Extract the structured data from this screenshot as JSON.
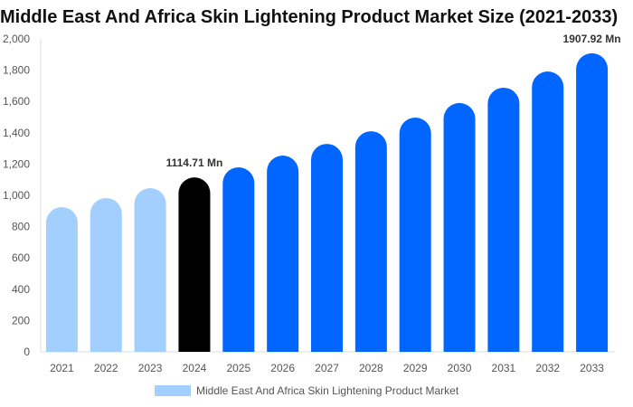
{
  "chart_data": {
    "type": "bar",
    "title": "Middle East And Africa Skin Lightening Product Market Size (2021-2033)",
    "categories": [
      "2021",
      "2022",
      "2023",
      "2024",
      "2025",
      "2026",
      "2027",
      "2028",
      "2029",
      "2030",
      "2031",
      "2032",
      "2033"
    ],
    "series": [
      {
        "name": "Middle East And Africa Skin Lightening Product Market",
        "values": [
          925,
          983,
          1046,
          1114.71,
          1179,
          1254,
          1329,
          1410,
          1497,
          1590,
          1688,
          1792,
          1907.92
        ]
      }
    ],
    "bar_colors": [
      "#a3cfff",
      "#a3cfff",
      "#a3cfff",
      "#000000",
      "#0066ff",
      "#0066ff",
      "#0066ff",
      "#0066ff",
      "#0066ff",
      "#0066ff",
      "#0066ff",
      "#0066ff",
      "#0066ff"
    ],
    "data_labels": [
      {
        "index": 3,
        "text": "1114.71 Mn"
      },
      {
        "index": 12,
        "text": "1907.92 Mn"
      }
    ],
    "ylim": [
      0,
      2000
    ],
    "yticks": [
      "0",
      "200",
      "400",
      "600",
      "800",
      "1,000",
      "1,200",
      "1,400",
      "1,600",
      "1,800",
      "2,000"
    ],
    "xlabel": "",
    "ylabel": "",
    "grid": false,
    "legend_position": "bottom",
    "legend_color": "#a3cfff"
  }
}
